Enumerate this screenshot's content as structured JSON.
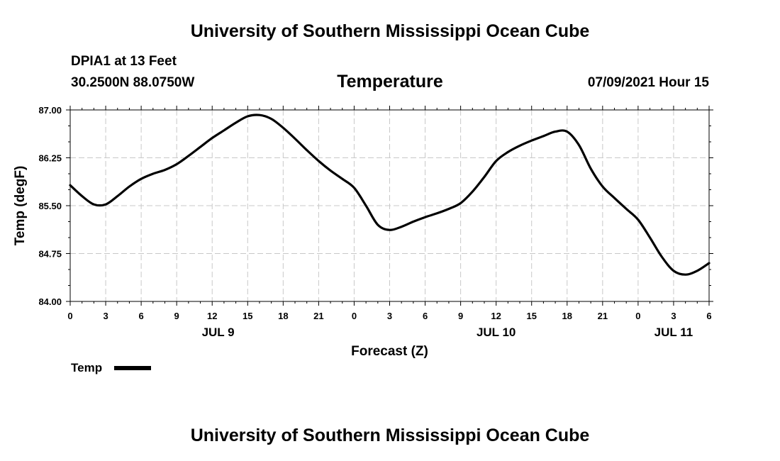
{
  "page": {
    "header_title": "University of Southern Mississippi Ocean Cube",
    "footer_title": "University of Southern Mississippi Ocean Cube",
    "station": "DPIA1 at 13 Feet",
    "coords": "30.2500N  88.0750W",
    "variable": "Temperature",
    "valid_time": "07/09/2021 Hour 15"
  },
  "chart_data": {
    "type": "line",
    "ylabel": "Temp (degF)",
    "xlabel": "Forecast (Z)",
    "ylim": [
      84.0,
      87.0
    ],
    "yticks": [
      "84.00",
      "84.75",
      "85.50",
      "86.25",
      "87.00"
    ],
    "xlim": [
      0,
      54
    ],
    "xtick_hours": [
      0,
      3,
      6,
      9,
      12,
      15,
      18,
      21,
      24,
      27,
      30,
      33,
      36,
      39,
      42,
      45,
      48,
      51,
      54
    ],
    "xtick_labels": [
      "0",
      "3",
      "6",
      "9",
      "12",
      "15",
      "18",
      "21",
      "0",
      "3",
      "6",
      "9",
      "12",
      "15",
      "18",
      "21",
      "0",
      "3",
      "6"
    ],
    "date_labels": [
      {
        "hour": 12.5,
        "label": "JUL 9"
      },
      {
        "hour": 36,
        "label": "JUL 10"
      },
      {
        "hour": 51,
        "label": "JUL 11"
      }
    ],
    "grid": true,
    "line_color": "#000000",
    "series": [
      {
        "name": "Temp",
        "x": [
          0,
          1,
          2,
          3,
          4,
          5,
          6,
          7,
          8,
          9,
          10,
          11,
          12,
          13,
          14,
          15,
          16,
          17,
          18,
          19,
          20,
          21,
          22,
          23,
          24,
          25,
          26,
          27,
          28,
          29,
          30,
          31,
          32,
          33,
          34,
          35,
          36,
          37,
          38,
          39,
          40,
          41,
          42,
          43,
          44,
          45,
          46,
          47,
          48,
          49,
          50,
          51,
          52,
          53,
          54
        ],
        "y": [
          85.82,
          85.65,
          85.52,
          85.52,
          85.65,
          85.8,
          85.92,
          86.0,
          86.06,
          86.15,
          86.28,
          86.42,
          86.56,
          86.68,
          86.8,
          86.9,
          86.92,
          86.86,
          86.72,
          86.55,
          86.37,
          86.2,
          86.05,
          85.92,
          85.78,
          85.5,
          85.2,
          85.12,
          85.17,
          85.25,
          85.32,
          85.38,
          85.45,
          85.54,
          85.72,
          85.95,
          86.2,
          86.34,
          86.44,
          86.52,
          86.59,
          86.66,
          86.66,
          86.45,
          86.08,
          85.8,
          85.62,
          85.45,
          85.28,
          85.0,
          84.7,
          84.48,
          84.42,
          84.48,
          84.6
        ]
      }
    ],
    "legend": [
      {
        "label": "Temp"
      }
    ],
    "legend_position": "bottom-left"
  }
}
